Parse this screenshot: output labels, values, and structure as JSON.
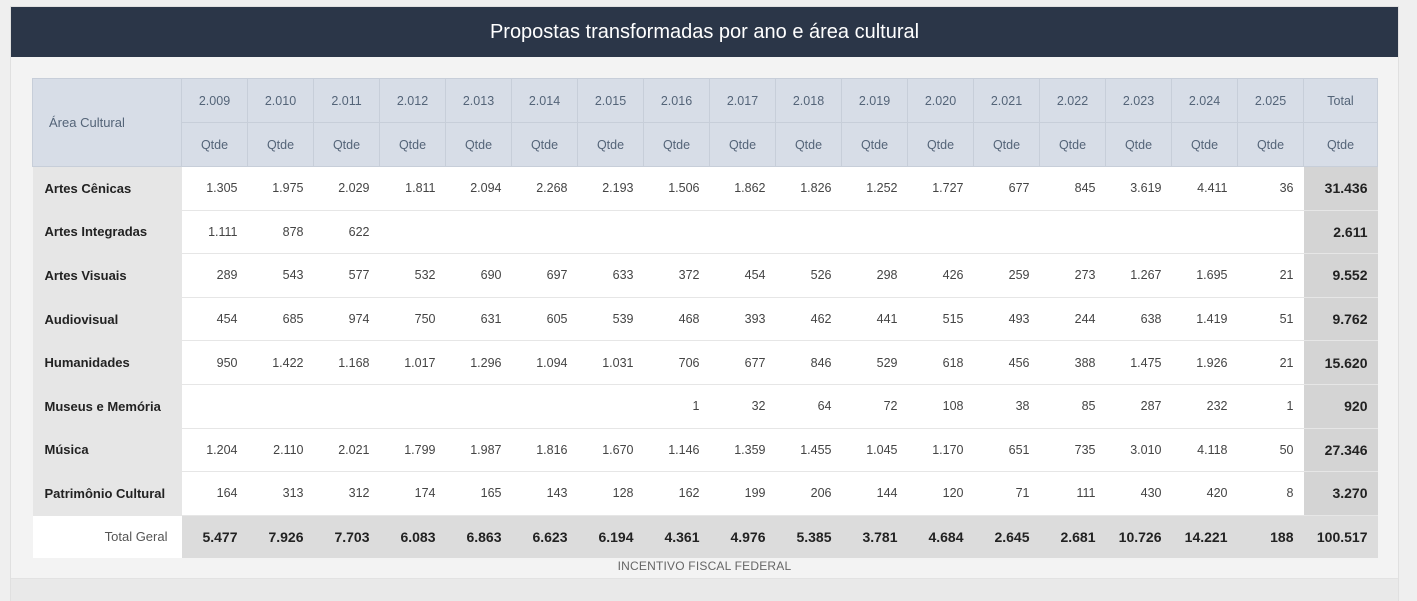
{
  "title": "Propostas transformadas por ano e área cultural",
  "header": {
    "area_label": "Área Cultural",
    "years": [
      "2.009",
      "2.010",
      "2.011",
      "2.012",
      "2.013",
      "2.014",
      "2.015",
      "2.016",
      "2.017",
      "2.018",
      "2.019",
      "2.020",
      "2.021",
      "2.022",
      "2.023",
      "2.024",
      "2.025"
    ],
    "total_label": "Total",
    "sub_label": "Qtde"
  },
  "rows": [
    {
      "area": "Artes Cênicas",
      "values": [
        "1.305",
        "1.975",
        "2.029",
        "1.811",
        "2.094",
        "2.268",
        "2.193",
        "1.506",
        "1.862",
        "1.826",
        "1.252",
        "1.727",
        "677",
        "845",
        "3.619",
        "4.411",
        "36"
      ],
      "total": "31.436"
    },
    {
      "area": "Artes Integradas",
      "values": [
        "1.111",
        "878",
        "622",
        "",
        "",
        "",
        "",
        "",
        "",
        "",
        "",
        "",
        "",
        "",
        "",
        "",
        ""
      ],
      "total": "2.611"
    },
    {
      "area": "Artes Visuais",
      "values": [
        "289",
        "543",
        "577",
        "532",
        "690",
        "697",
        "633",
        "372",
        "454",
        "526",
        "298",
        "426",
        "259",
        "273",
        "1.267",
        "1.695",
        "21"
      ],
      "total": "9.552"
    },
    {
      "area": "Audiovisual",
      "values": [
        "454",
        "685",
        "974",
        "750",
        "631",
        "605",
        "539",
        "468",
        "393",
        "462",
        "441",
        "515",
        "493",
        "244",
        "638",
        "1.419",
        "51"
      ],
      "total": "9.762"
    },
    {
      "area": "Humanidades",
      "values": [
        "950",
        "1.422",
        "1.168",
        "1.017",
        "1.296",
        "1.094",
        "1.031",
        "706",
        "677",
        "846",
        "529",
        "618",
        "456",
        "388",
        "1.475",
        "1.926",
        "21"
      ],
      "total": "15.620"
    },
    {
      "area": "Museus e Memória",
      "values": [
        "",
        "",
        "",
        "",
        "",
        "",
        "",
        "1",
        "32",
        "64",
        "72",
        "108",
        "38",
        "85",
        "287",
        "232",
        "1"
      ],
      "total": "920"
    },
    {
      "area": "Música",
      "values": [
        "1.204",
        "2.110",
        "2.021",
        "1.799",
        "1.987",
        "1.816",
        "1.670",
        "1.146",
        "1.359",
        "1.455",
        "1.045",
        "1.170",
        "651",
        "735",
        "3.010",
        "4.118",
        "50"
      ],
      "total": "27.346"
    },
    {
      "area": "Patrimônio Cultural",
      "values": [
        "164",
        "313",
        "312",
        "174",
        "165",
        "143",
        "128",
        "162",
        "199",
        "206",
        "144",
        "120",
        "71",
        "111",
        "430",
        "420",
        "8"
      ],
      "total": "3.270"
    }
  ],
  "totals": {
    "label": "Total Geral",
    "values": [
      "5.477",
      "7.926",
      "7.703",
      "6.083",
      "6.863",
      "6.623",
      "6.194",
      "4.361",
      "4.976",
      "5.385",
      "3.781",
      "4.684",
      "2.645",
      "2.681",
      "10.726",
      "14.221",
      "188"
    ],
    "grand_total": "100.517"
  },
  "footer": "INCENTIVO FISCAL FEDERAL"
}
